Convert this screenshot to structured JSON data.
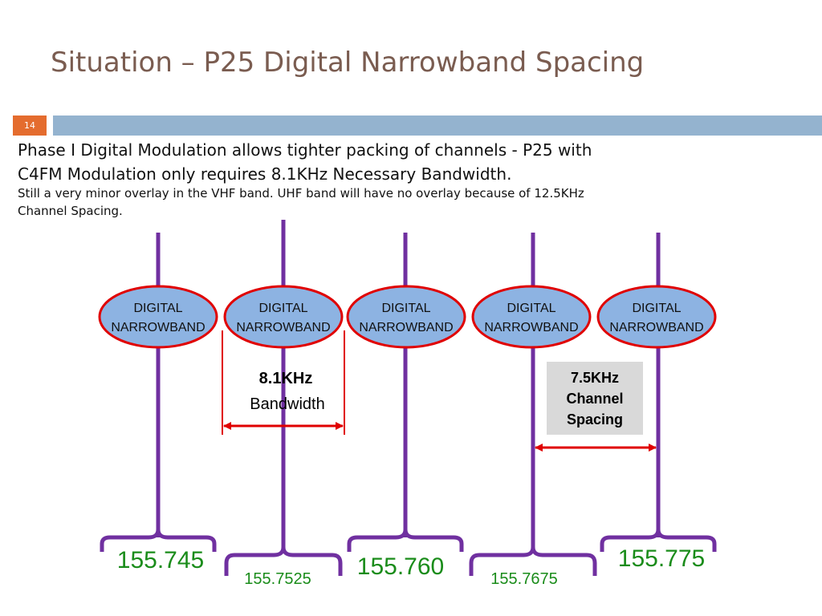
{
  "slide": {
    "title": "Situation – P25 Digital Narrowband Spacing",
    "number": "14",
    "text_line1a": "Phase I  Digital Modulation allows tighter packing of channels - P25 with",
    "text_line1b": "C4FM Modulation only requires 8.1KHz Necessary Bandwidth.",
    "text_line2a": "Still a very minor overlay in the VHF band.  UHF band will have no overlay because of 12.5KHz",
    "text_line2b": "Channel Spacing."
  },
  "diagram": {
    "ellipse_label_line1": "DIGITAL",
    "ellipse_label_line2": "NARROWBAND",
    "bandwidth_value": "8.1KHz",
    "bandwidth_label": "Bandwidth",
    "spacing_line1": "7.5KHz",
    "spacing_line2": "Channel",
    "spacing_line3": "Spacing",
    "frequencies": [
      "155.745",
      "155.7525",
      "155.760",
      "155.7675",
      "155.775"
    ]
  },
  "colors": {
    "title": "#7a5c50",
    "slide_number_bg": "#e46c2e",
    "top_bar": "#94b3cf",
    "channel_line": "#7030a0",
    "ellipse_fill": "#8db3e2",
    "ellipse_border": "#e00000",
    "arrow": "#e00000",
    "frequency_text": "#1a8c1a"
  }
}
